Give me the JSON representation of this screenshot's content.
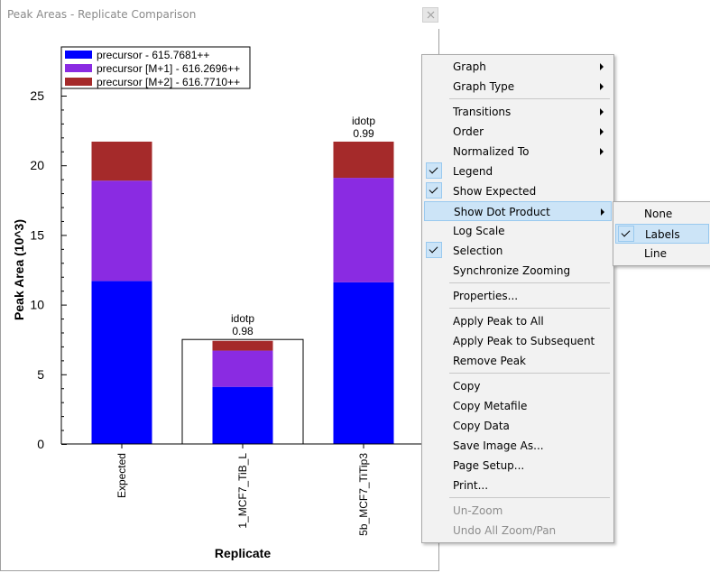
{
  "window": {
    "title": "Peak Areas - Replicate Comparison",
    "close_icon": "close-icon"
  },
  "chart_data": {
    "type": "bar",
    "stacked": true,
    "categories": [
      "Expected",
      "1_MCF7_TiB_L",
      "5b_MCF7_TiTip3"
    ],
    "series": [
      {
        "name": "precursor - 615.7681++",
        "color": "#0000ff",
        "values": [
          11.7,
          4.1,
          11.6
        ]
      },
      {
        "name": "precursor [M+1] - 616.2696++",
        "color": "#8a2be2",
        "values": [
          7.2,
          2.6,
          7.5
        ]
      },
      {
        "name": "precursor [M+2] - 616.7710++",
        "color": "#a52a2a",
        "values": [
          2.8,
          0.7,
          2.6
        ]
      }
    ],
    "expected_outline": {
      "category": "1_MCF7_TiB_L",
      "value": 7.5
    },
    "dot_product_labels": [
      {
        "category": "1_MCF7_TiB_L",
        "label": "idotp",
        "value": "0.98"
      },
      {
        "category": "5b_MCF7_TiTip3",
        "label": "idotp",
        "value": "0.99"
      }
    ],
    "ylim": [
      0,
      25
    ],
    "yticks": [
      "0",
      "5",
      "10",
      "15",
      "20",
      "25"
    ],
    "xlabel": "Replicate",
    "ylabel": "Peak Area (10^3)",
    "legend_position": "top-left",
    "grid": false
  },
  "context_menu": {
    "items": [
      {
        "label": "Graph",
        "submenu": true,
        "checked": false
      },
      {
        "label": "Graph Type",
        "submenu": true,
        "checked": false
      },
      {
        "separator": true
      },
      {
        "label": "Transitions",
        "submenu": true,
        "checked": false
      },
      {
        "label": "Order",
        "submenu": true,
        "checked": false
      },
      {
        "label": "Normalized To",
        "submenu": true,
        "checked": false
      },
      {
        "label": "Legend",
        "submenu": false,
        "checked": true
      },
      {
        "label": "Show Expected",
        "submenu": false,
        "checked": true
      },
      {
        "label": "Show Dot Product",
        "submenu": true,
        "checked": false,
        "highlighted": true
      },
      {
        "label": "Log Scale",
        "submenu": false,
        "checked": false
      },
      {
        "label": "Selection",
        "submenu": false,
        "checked": true
      },
      {
        "label": "Synchronize Zooming",
        "submenu": false,
        "checked": false
      },
      {
        "separator": true
      },
      {
        "label": "Properties...",
        "submenu": false,
        "checked": false
      },
      {
        "separator": true
      },
      {
        "label": "Apply Peak to All",
        "submenu": false,
        "checked": false
      },
      {
        "label": "Apply Peak to Subsequent",
        "submenu": false,
        "checked": false
      },
      {
        "label": "Remove Peak",
        "submenu": false,
        "checked": false
      },
      {
        "separator": true
      },
      {
        "label": "Copy",
        "submenu": false,
        "checked": false
      },
      {
        "label": "Copy Metafile",
        "submenu": false,
        "checked": false
      },
      {
        "label": "Copy Data",
        "submenu": false,
        "checked": false
      },
      {
        "label": "Save Image As...",
        "submenu": false,
        "checked": false
      },
      {
        "label": "Page Setup...",
        "submenu": false,
        "checked": false
      },
      {
        "label": "Print...",
        "submenu": false,
        "checked": false
      },
      {
        "separator": true
      },
      {
        "label": "Un-Zoom",
        "submenu": false,
        "checked": false,
        "disabled": true
      },
      {
        "label": "Undo All Zoom/Pan",
        "submenu": false,
        "checked": false,
        "disabled": true
      }
    ]
  },
  "submenu": {
    "items": [
      {
        "label": "None",
        "checked": false
      },
      {
        "label": "Labels",
        "checked": true,
        "highlighted": true
      },
      {
        "label": "Line",
        "checked": false
      }
    ]
  }
}
